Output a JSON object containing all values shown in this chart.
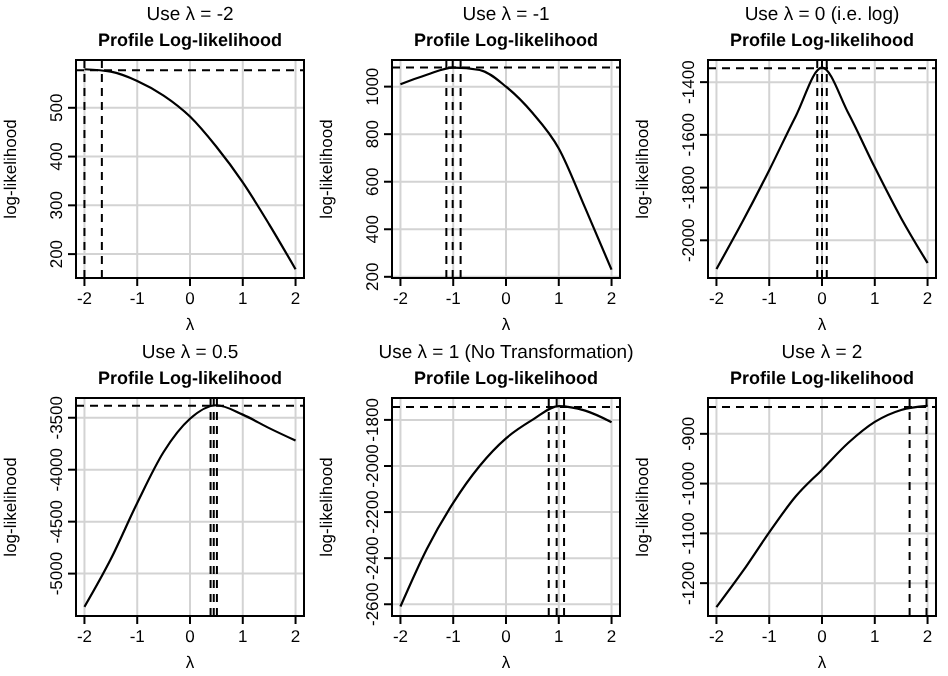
{
  "chart_data": [
    {
      "type": "line",
      "title": "Profile Log-likelihood",
      "subtitle": "Use λ = -2",
      "xlabel": "λ",
      "ylabel": "log-likelihood",
      "x": [
        -2,
        -1.5,
        -1,
        -0.5,
        0,
        0.5,
        1,
        1.5,
        2
      ],
      "values": [
        579,
        574,
        555,
        525,
        482,
        420,
        347,
        261,
        169
      ],
      "color": "#000000",
      "xlim": [
        -2.16,
        2.16
      ],
      "ylim": [
        151,
        598
      ],
      "xticks": [
        -2,
        -1,
        0,
        1,
        2
      ],
      "yticks": [
        200,
        300,
        400,
        500
      ],
      "grid": true,
      "ref_lines": [
        {
          "axis": "y",
          "value": 577,
          "line_style": "dashed"
        },
        {
          "axis": "x",
          "value": -2,
          "line_style": "dashed"
        },
        {
          "axis": "x",
          "value": -1.67,
          "line_style": "dashed"
        }
      ]
    },
    {
      "type": "line",
      "title": "Profile Log-likelihood",
      "subtitle": "Use λ = -1",
      "xlabel": "λ",
      "ylabel": "log-likelihood",
      "x": [
        -2,
        -1.5,
        -1,
        -0.5,
        0,
        0.5,
        1,
        1.5,
        2
      ],
      "values": [
        1010,
        1050,
        1080,
        1070,
        1000,
        890,
        740,
        490,
        230
      ],
      "color": "#000000",
      "xlim": [
        -2.16,
        2.16
      ],
      "ylim": [
        195,
        1112
      ],
      "xticks": [
        -2,
        -1,
        0,
        1,
        2
      ],
      "yticks": [
        200,
        400,
        600,
        800,
        1000
      ],
      "grid": true,
      "ref_lines": [
        {
          "axis": "y",
          "value": 1080,
          "line_style": "dashed"
        },
        {
          "axis": "x",
          "value": -1.13,
          "line_style": "dashed"
        },
        {
          "axis": "x",
          "value": -1.01,
          "line_style": "dashed"
        },
        {
          "axis": "x",
          "value": -0.86,
          "line_style": "dashed"
        }
      ]
    },
    {
      "type": "line",
      "title": "Profile Log-likelihood",
      "subtitle": "Use λ = 0 (i.e. log)",
      "xlabel": "λ",
      "ylabel": "log-likelihood",
      "x": [
        -2,
        -1.5,
        -1,
        -0.5,
        0,
        0.5,
        1,
        1.5,
        2
      ],
      "values": [
        -2109,
        -1927,
        -1734,
        -1530,
        -1345,
        -1518,
        -1723,
        -1916,
        -2086
      ],
      "color": "#000000",
      "xlim": [
        -2.16,
        2.16
      ],
      "ylim": [
        -2143,
        -1316
      ],
      "xticks": [
        -2,
        -1,
        0,
        1,
        2
      ],
      "yticks": [
        -2000,
        -1800,
        -1600,
        -1400
      ],
      "grid": true,
      "ref_lines": [
        {
          "axis": "y",
          "value": -1347,
          "line_style": "dashed"
        },
        {
          "axis": "x",
          "value": -0.09,
          "line_style": "dashed"
        },
        {
          "axis": "x",
          "value": 0,
          "line_style": "dashed"
        },
        {
          "axis": "x",
          "value": 0.09,
          "line_style": "dashed"
        }
      ]
    },
    {
      "type": "line",
      "title": "Profile Log-likelihood",
      "subtitle": "Use λ = 0.5",
      "xlabel": "λ",
      "ylabel": "log-likelihood",
      "x": [
        -2,
        -1.5,
        -1,
        -0.5,
        0,
        0.5,
        1,
        1.5,
        2
      ],
      "values": [
        -5320,
        -4860,
        -4320,
        -3830,
        -3510,
        -3380,
        -3470,
        -3600,
        -3720
      ],
      "color": "#000000",
      "xlim": [
        -2.16,
        2.16
      ],
      "ylim": [
        -5408,
        -3310
      ],
      "xticks": [
        -2,
        -1,
        0,
        1,
        2
      ],
      "yticks": [
        -5000,
        -4500,
        -4000,
        -3500
      ],
      "grid": true,
      "ref_lines": [
        {
          "axis": "y",
          "value": -3385,
          "line_style": "dashed"
        },
        {
          "axis": "x",
          "value": 0.39,
          "line_style": "dashed"
        },
        {
          "axis": "x",
          "value": 0.45,
          "line_style": "dashed"
        },
        {
          "axis": "x",
          "value": 0.51,
          "line_style": "dashed"
        }
      ]
    },
    {
      "type": "line",
      "title": "Profile Log-likelihood",
      "subtitle": "Use λ = 1 (No Transformation)",
      "xlabel": "λ",
      "ylabel": "log-likelihood",
      "x": [
        -2,
        -1.5,
        -1,
        -0.5,
        0,
        0.5,
        1,
        1.5,
        2
      ],
      "values": [
        -2610,
        -2360,
        -2160,
        -2000,
        -1880,
        -1800,
        -1740,
        -1760,
        -1810
      ],
      "color": "#000000",
      "xlim": [
        -2.16,
        2.16
      ],
      "ylim": [
        -2651,
        -1705
      ],
      "xticks": [
        -2,
        -1,
        0,
        1,
        2
      ],
      "yticks": [
        -2600,
        -2400,
        -2200,
        -2000,
        -1800
      ],
      "grid": true,
      "ref_lines": [
        {
          "axis": "y",
          "value": -1744,
          "line_style": "dashed"
        },
        {
          "axis": "x",
          "value": 0.81,
          "line_style": "dashed"
        },
        {
          "axis": "x",
          "value": 0.96,
          "line_style": "dashed"
        },
        {
          "axis": "x",
          "value": 1.1,
          "line_style": "dashed"
        }
      ]
    },
    {
      "type": "line",
      "title": "Profile Log-likelihood",
      "subtitle": "Use λ = 2",
      "xlabel": "λ",
      "ylabel": "log-likelihood",
      "x": [
        -2,
        -1.5,
        -1,
        -0.5,
        0,
        0.5,
        1,
        1.5,
        2
      ],
      "values": [
        -1248,
        -1176,
        -1098,
        -1026,
        -972,
        -918,
        -876,
        -852,
        -844
      ],
      "color": "#000000",
      "xlim": [
        -2.16,
        2.16
      ],
      "ylim": [
        -1266,
        -828
      ],
      "xticks": [
        -2,
        -1,
        0,
        1,
        2
      ],
      "yticks": [
        -1200,
        -1100,
        -1000,
        -900
      ],
      "grid": true,
      "ref_lines": [
        {
          "axis": "y",
          "value": -846,
          "line_style": "dashed"
        },
        {
          "axis": "x",
          "value": 1.66,
          "line_style": "dashed"
        },
        {
          "axis": "x",
          "value": 1.98,
          "line_style": "dashed"
        }
      ]
    }
  ]
}
